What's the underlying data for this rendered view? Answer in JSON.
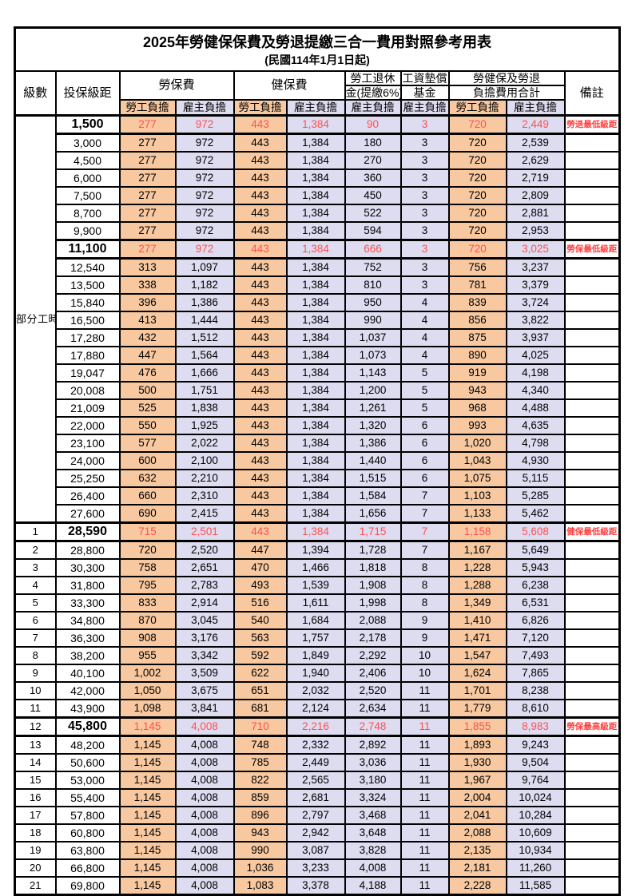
{
  "title": "2025年勞健保保費及勞退提繳三合一費用對照參考用表",
  "subtitle": "(民國114年1月1日起)",
  "columns": {
    "level": "級數",
    "bracket": "投保級距",
    "labor_ins": "勞保費",
    "health_ins": "健保費",
    "pension_line1": "勞工退休",
    "pension_line2": "金(提繳6%)",
    "wage_fund_line1": "工資墊償",
    "wage_fund_line2": "基金",
    "total_line1": "勞健保及勞退",
    "total_line2": "負擔費用合計",
    "remark": "備註",
    "employee_share": "勞工負擔",
    "employer_share": "雇主負擔"
  },
  "part_time_label": "部分工時",
  "part_time_rowspan": 23,
  "colors": {
    "employee_bg": "#f8c9a0",
    "employer_bg": "#dedcf0",
    "red_value": "#ff5050",
    "red_note": "#ff4040"
  },
  "rows": [
    {
      "level": null,
      "bracket": "1,500",
      "cells": [
        "277",
        "972",
        "443",
        "1,384",
        "90",
        "3",
        "720",
        "2,449"
      ],
      "remark": "勞退最低級距",
      "highlight": true
    },
    {
      "level": null,
      "bracket": "3,000",
      "cells": [
        "277",
        "972",
        "443",
        "1,384",
        "180",
        "3",
        "720",
        "2,539"
      ],
      "remark": "",
      "highlight": false
    },
    {
      "level": null,
      "bracket": "4,500",
      "cells": [
        "277",
        "972",
        "443",
        "1,384",
        "270",
        "3",
        "720",
        "2,629"
      ],
      "remark": "",
      "highlight": false
    },
    {
      "level": null,
      "bracket": "6,000",
      "cells": [
        "277",
        "972",
        "443",
        "1,384",
        "360",
        "3",
        "720",
        "2,719"
      ],
      "remark": "",
      "highlight": false
    },
    {
      "level": null,
      "bracket": "7,500",
      "cells": [
        "277",
        "972",
        "443",
        "1,384",
        "450",
        "3",
        "720",
        "2,809"
      ],
      "remark": "",
      "highlight": false
    },
    {
      "level": null,
      "bracket": "8,700",
      "cells": [
        "277",
        "972",
        "443",
        "1,384",
        "522",
        "3",
        "720",
        "2,881"
      ],
      "remark": "",
      "highlight": false
    },
    {
      "level": null,
      "bracket": "9,900",
      "cells": [
        "277",
        "972",
        "443",
        "1,384",
        "594",
        "3",
        "720",
        "2,953"
      ],
      "remark": "",
      "highlight": false
    },
    {
      "level": null,
      "bracket": "11,100",
      "cells": [
        "277",
        "972",
        "443",
        "1,384",
        "666",
        "3",
        "720",
        "3,025"
      ],
      "remark": "勞保最低級距",
      "highlight": true
    },
    {
      "level": null,
      "bracket": "12,540",
      "cells": [
        "313",
        "1,097",
        "443",
        "1,384",
        "752",
        "3",
        "756",
        "3,237"
      ],
      "remark": "",
      "highlight": false
    },
    {
      "level": null,
      "bracket": "13,500",
      "cells": [
        "338",
        "1,182",
        "443",
        "1,384",
        "810",
        "3",
        "781",
        "3,379"
      ],
      "remark": "",
      "highlight": false
    },
    {
      "level": null,
      "bracket": "15,840",
      "cells": [
        "396",
        "1,386",
        "443",
        "1,384",
        "950",
        "4",
        "839",
        "3,724"
      ],
      "remark": "",
      "highlight": false
    },
    {
      "level": null,
      "bracket": "16,500",
      "cells": [
        "413",
        "1,444",
        "443",
        "1,384",
        "990",
        "4",
        "856",
        "3,822"
      ],
      "remark": "",
      "highlight": false
    },
    {
      "level": null,
      "bracket": "17,280",
      "cells": [
        "432",
        "1,512",
        "443",
        "1,384",
        "1,037",
        "4",
        "875",
        "3,937"
      ],
      "remark": "",
      "highlight": false
    },
    {
      "level": null,
      "bracket": "17,880",
      "cells": [
        "447",
        "1,564",
        "443",
        "1,384",
        "1,073",
        "4",
        "890",
        "4,025"
      ],
      "remark": "",
      "highlight": false
    },
    {
      "level": null,
      "bracket": "19,047",
      "cells": [
        "476",
        "1,666",
        "443",
        "1,384",
        "1,143",
        "5",
        "919",
        "4,198"
      ],
      "remark": "",
      "highlight": false
    },
    {
      "level": null,
      "bracket": "20,008",
      "cells": [
        "500",
        "1,751",
        "443",
        "1,384",
        "1,200",
        "5",
        "943",
        "4,340"
      ],
      "remark": "",
      "highlight": false
    },
    {
      "level": null,
      "bracket": "21,009",
      "cells": [
        "525",
        "1,838",
        "443",
        "1,384",
        "1,261",
        "5",
        "968",
        "4,488"
      ],
      "remark": "",
      "highlight": false
    },
    {
      "level": null,
      "bracket": "22,000",
      "cells": [
        "550",
        "1,925",
        "443",
        "1,384",
        "1,320",
        "6",
        "993",
        "4,635"
      ],
      "remark": "",
      "highlight": false
    },
    {
      "level": null,
      "bracket": "23,100",
      "cells": [
        "577",
        "2,022",
        "443",
        "1,384",
        "1,386",
        "6",
        "1,020",
        "4,798"
      ],
      "remark": "",
      "highlight": false
    },
    {
      "level": null,
      "bracket": "24,000",
      "cells": [
        "600",
        "2,100",
        "443",
        "1,384",
        "1,440",
        "6",
        "1,043",
        "4,930"
      ],
      "remark": "",
      "highlight": false
    },
    {
      "level": null,
      "bracket": "25,250",
      "cells": [
        "632",
        "2,210",
        "443",
        "1,384",
        "1,515",
        "6",
        "1,075",
        "5,115"
      ],
      "remark": "",
      "highlight": false
    },
    {
      "level": null,
      "bracket": "26,400",
      "cells": [
        "660",
        "2,310",
        "443",
        "1,384",
        "1,584",
        "7",
        "1,103",
        "5,285"
      ],
      "remark": "",
      "highlight": false
    },
    {
      "level": null,
      "bracket": "27,600",
      "cells": [
        "690",
        "2,415",
        "443",
        "1,384",
        "1,656",
        "7",
        "1,133",
        "5,462"
      ],
      "remark": "",
      "highlight": false
    },
    {
      "level": "1",
      "bracket": "28,590",
      "cells": [
        "715",
        "2,501",
        "443",
        "1,384",
        "1,715",
        "7",
        "1,158",
        "5,608"
      ],
      "remark": "健保最低級距",
      "highlight": true
    },
    {
      "level": "2",
      "bracket": "28,800",
      "cells": [
        "720",
        "2,520",
        "447",
        "1,394",
        "1,728",
        "7",
        "1,167",
        "5,649"
      ],
      "remark": "",
      "highlight": false
    },
    {
      "level": "3",
      "bracket": "30,300",
      "cells": [
        "758",
        "2,651",
        "470",
        "1,466",
        "1,818",
        "8",
        "1,228",
        "5,943"
      ],
      "remark": "",
      "highlight": false
    },
    {
      "level": "4",
      "bracket": "31,800",
      "cells": [
        "795",
        "2,783",
        "493",
        "1,539",
        "1,908",
        "8",
        "1,288",
        "6,238"
      ],
      "remark": "",
      "highlight": false
    },
    {
      "level": "5",
      "bracket": "33,300",
      "cells": [
        "833",
        "2,914",
        "516",
        "1,611",
        "1,998",
        "8",
        "1,349",
        "6,531"
      ],
      "remark": "",
      "highlight": false
    },
    {
      "level": "6",
      "bracket": "34,800",
      "cells": [
        "870",
        "3,045",
        "540",
        "1,684",
        "2,088",
        "9",
        "1,410",
        "6,826"
      ],
      "remark": "",
      "highlight": false
    },
    {
      "level": "7",
      "bracket": "36,300",
      "cells": [
        "908",
        "3,176",
        "563",
        "1,757",
        "2,178",
        "9",
        "1,471",
        "7,120"
      ],
      "remark": "",
      "highlight": false
    },
    {
      "level": "8",
      "bracket": "38,200",
      "cells": [
        "955",
        "3,342",
        "592",
        "1,849",
        "2,292",
        "10",
        "1,547",
        "7,493"
      ],
      "remark": "",
      "highlight": false
    },
    {
      "level": "9",
      "bracket": "40,100",
      "cells": [
        "1,002",
        "3,509",
        "622",
        "1,940",
        "2,406",
        "10",
        "1,624",
        "7,865"
      ],
      "remark": "",
      "highlight": false
    },
    {
      "level": "10",
      "bracket": "42,000",
      "cells": [
        "1,050",
        "3,675",
        "651",
        "2,032",
        "2,520",
        "11",
        "1,701",
        "8,238"
      ],
      "remark": "",
      "highlight": false
    },
    {
      "level": "11",
      "bracket": "43,900",
      "cells": [
        "1,098",
        "3,841",
        "681",
        "2,124",
        "2,634",
        "11",
        "1,779",
        "8,610"
      ],
      "remark": "",
      "highlight": false
    },
    {
      "level": "12",
      "bracket": "45,800",
      "cells": [
        "1,145",
        "4,008",
        "710",
        "2,216",
        "2,748",
        "11",
        "1,855",
        "8,983"
      ],
      "remark": "勞保最高級距",
      "highlight": true
    },
    {
      "level": "13",
      "bracket": "48,200",
      "cells": [
        "1,145",
        "4,008",
        "748",
        "2,332",
        "2,892",
        "11",
        "1,893",
        "9,243"
      ],
      "remark": "",
      "highlight": false
    },
    {
      "level": "14",
      "bracket": "50,600",
      "cells": [
        "1,145",
        "4,008",
        "785",
        "2,449",
        "3,036",
        "11",
        "1,930",
        "9,504"
      ],
      "remark": "",
      "highlight": false
    },
    {
      "level": "15",
      "bracket": "53,000",
      "cells": [
        "1,145",
        "4,008",
        "822",
        "2,565",
        "3,180",
        "11",
        "1,967",
        "9,764"
      ],
      "remark": "",
      "highlight": false
    },
    {
      "level": "16",
      "bracket": "55,400",
      "cells": [
        "1,145",
        "4,008",
        "859",
        "2,681",
        "3,324",
        "11",
        "2,004",
        "10,024"
      ],
      "remark": "",
      "highlight": false
    },
    {
      "level": "17",
      "bracket": "57,800",
      "cells": [
        "1,145",
        "4,008",
        "896",
        "2,797",
        "3,468",
        "11",
        "2,041",
        "10,284"
      ],
      "remark": "",
      "highlight": false
    },
    {
      "level": "18",
      "bracket": "60,800",
      "cells": [
        "1,145",
        "4,008",
        "943",
        "2,942",
        "3,648",
        "11",
        "2,088",
        "10,609"
      ],
      "remark": "",
      "highlight": false
    },
    {
      "level": "19",
      "bracket": "63,800",
      "cells": [
        "1,145",
        "4,008",
        "990",
        "3,087",
        "3,828",
        "11",
        "2,135",
        "10,934"
      ],
      "remark": "",
      "highlight": false
    },
    {
      "level": "20",
      "bracket": "66,800",
      "cells": [
        "1,145",
        "4,008",
        "1,036",
        "3,233",
        "4,008",
        "11",
        "2,181",
        "11,260"
      ],
      "remark": "",
      "highlight": false
    },
    {
      "level": "21",
      "bracket": "69,800",
      "cells": [
        "1,145",
        "4,008",
        "1,083",
        "3,378",
        "4,188",
        "11",
        "2,228",
        "11,585"
      ],
      "remark": "",
      "highlight": false
    }
  ]
}
